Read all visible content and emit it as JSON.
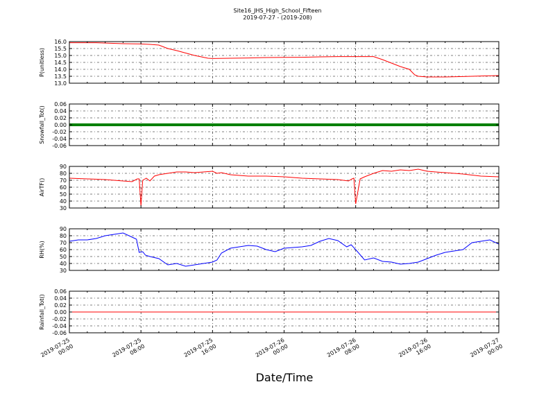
{
  "title": "Site16_JHS_High_School_Fifteen",
  "subtitle": "2019-07-27 - (2019-208)",
  "xlabel": "Date/Time",
  "x_ticks": [
    "2019-07-25\n00:00",
    "2019-07-25\n08:00",
    "2019-07-25\n16:00",
    "2019-07-26\n00:00",
    "2019-07-26\n08:00",
    "2019-07-26\n16:00",
    "2019-07-27\n00:00"
  ],
  "chart_data": [
    {
      "type": "line",
      "ylabel": "P(unitless)",
      "ylim": [
        13.0,
        16.0
      ],
      "yticks": [
        13.0,
        13.5,
        14.0,
        14.5,
        15.0,
        15.5,
        16.0
      ],
      "tick_decimals": 1,
      "grid": true,
      "series": [
        {
          "color": "#ff0000",
          "style": "line",
          "x": [
            0,
            3,
            6,
            8,
            9,
            10,
            11,
            12,
            14,
            15.5,
            16,
            18,
            20,
            22,
            24,
            26,
            28,
            30,
            32,
            34,
            35,
            36,
            37,
            38,
            38.6,
            39,
            40,
            42,
            44,
            46,
            48
          ],
          "y": [
            15.92,
            15.92,
            15.85,
            15.83,
            15.8,
            15.75,
            15.5,
            15.35,
            15.0,
            14.8,
            14.78,
            14.8,
            14.82,
            14.85,
            14.86,
            14.87,
            14.9,
            14.92,
            14.92,
            14.92,
            14.7,
            14.45,
            14.2,
            14.0,
            13.6,
            13.5,
            13.45,
            13.45,
            13.48,
            13.52,
            13.55
          ]
        }
      ]
    },
    {
      "type": "line",
      "ylabel": "Snowfall_Tot()",
      "ylim": [
        -0.06,
        0.06
      ],
      "yticks": [
        -0.06,
        -0.04,
        -0.02,
        0.0,
        0.02,
        0.04,
        0.06
      ],
      "tick_decimals": 2,
      "grid": true,
      "series": [
        {
          "color": "#008000",
          "style": "thick",
          "x": [
            0,
            48
          ],
          "y": [
            0.0,
            0.0
          ]
        }
      ]
    },
    {
      "type": "line",
      "ylabel": "AirTF()",
      "ylim": [
        30,
        90
      ],
      "yticks": [
        30,
        40,
        50,
        60,
        70,
        80,
        90
      ],
      "tick_decimals": 0,
      "grid": true,
      "series": [
        {
          "color": "#ff0000",
          "style": "line",
          "x": [
            0,
            2,
            4,
            6,
            7,
            7.6,
            7.8,
            8.0,
            8.2,
            8.6,
            9,
            9.5,
            10,
            11,
            12,
            13,
            14,
            15,
            16,
            16.5,
            17,
            18,
            20,
            22,
            24,
            26,
            28,
            30,
            31.2,
            31.6,
            31.8,
            32,
            32.5,
            33,
            34,
            35,
            36,
            37,
            38,
            39,
            40,
            42,
            44,
            46,
            48
          ],
          "y": [
            73,
            72,
            71,
            69,
            68,
            72,
            72,
            33,
            70,
            73,
            69,
            76,
            78,
            80,
            82,
            82,
            81,
            82,
            83,
            80,
            81,
            78,
            76,
            76,
            75,
            73,
            72,
            71,
            69,
            72,
            73,
            36,
            72,
            75,
            80,
            84,
            83,
            85,
            84,
            86,
            83,
            81,
            79,
            76,
            75
          ]
        }
      ]
    },
    {
      "type": "line",
      "ylabel": "RH(%)",
      "ylim": [
        30,
        90
      ],
      "yticks": [
        30,
        40,
        50,
        60,
        70,
        80,
        90
      ],
      "tick_decimals": 0,
      "grid": true,
      "series": [
        {
          "color": "#0000ff",
          "style": "line",
          "x": [
            0,
            1,
            2,
            3,
            4,
            5,
            6,
            7,
            7.5,
            7.8,
            8.2,
            8.5,
            9,
            10,
            11,
            12,
            13,
            14,
            15,
            16,
            16.5,
            17,
            18,
            19,
            20,
            21,
            22,
            23,
            24,
            25,
            26,
            27,
            28,
            29,
            30,
            31,
            31.5,
            32,
            33,
            34,
            35,
            36,
            37,
            38,
            39,
            40,
            41,
            42,
            43,
            44,
            45,
            46,
            47,
            48
          ],
          "y": [
            72,
            74,
            74,
            76,
            80,
            82,
            84,
            78,
            75,
            56,
            57,
            52,
            50,
            47,
            38,
            40,
            36,
            38,
            40,
            42,
            45,
            55,
            62,
            64,
            66,
            65,
            60,
            57,
            62,
            63,
            64,
            66,
            72,
            76,
            73,
            64,
            67,
            60,
            45,
            48,
            43,
            42,
            39,
            40,
            42,
            47,
            52,
            56,
            58,
            60,
            70,
            72,
            74,
            68
          ]
        }
      ]
    },
    {
      "type": "line",
      "ylabel": "Rainfall_Tot()",
      "ylim": [
        -0.06,
        0.06
      ],
      "yticks": [
        -0.06,
        -0.04,
        -0.02,
        0.0,
        0.02,
        0.04,
        0.06
      ],
      "tick_decimals": 2,
      "grid": true,
      "series": [
        {
          "color": "#ff0000",
          "style": "line",
          "x": [
            0,
            48
          ],
          "y": [
            0.0,
            0.0
          ]
        }
      ]
    }
  ]
}
